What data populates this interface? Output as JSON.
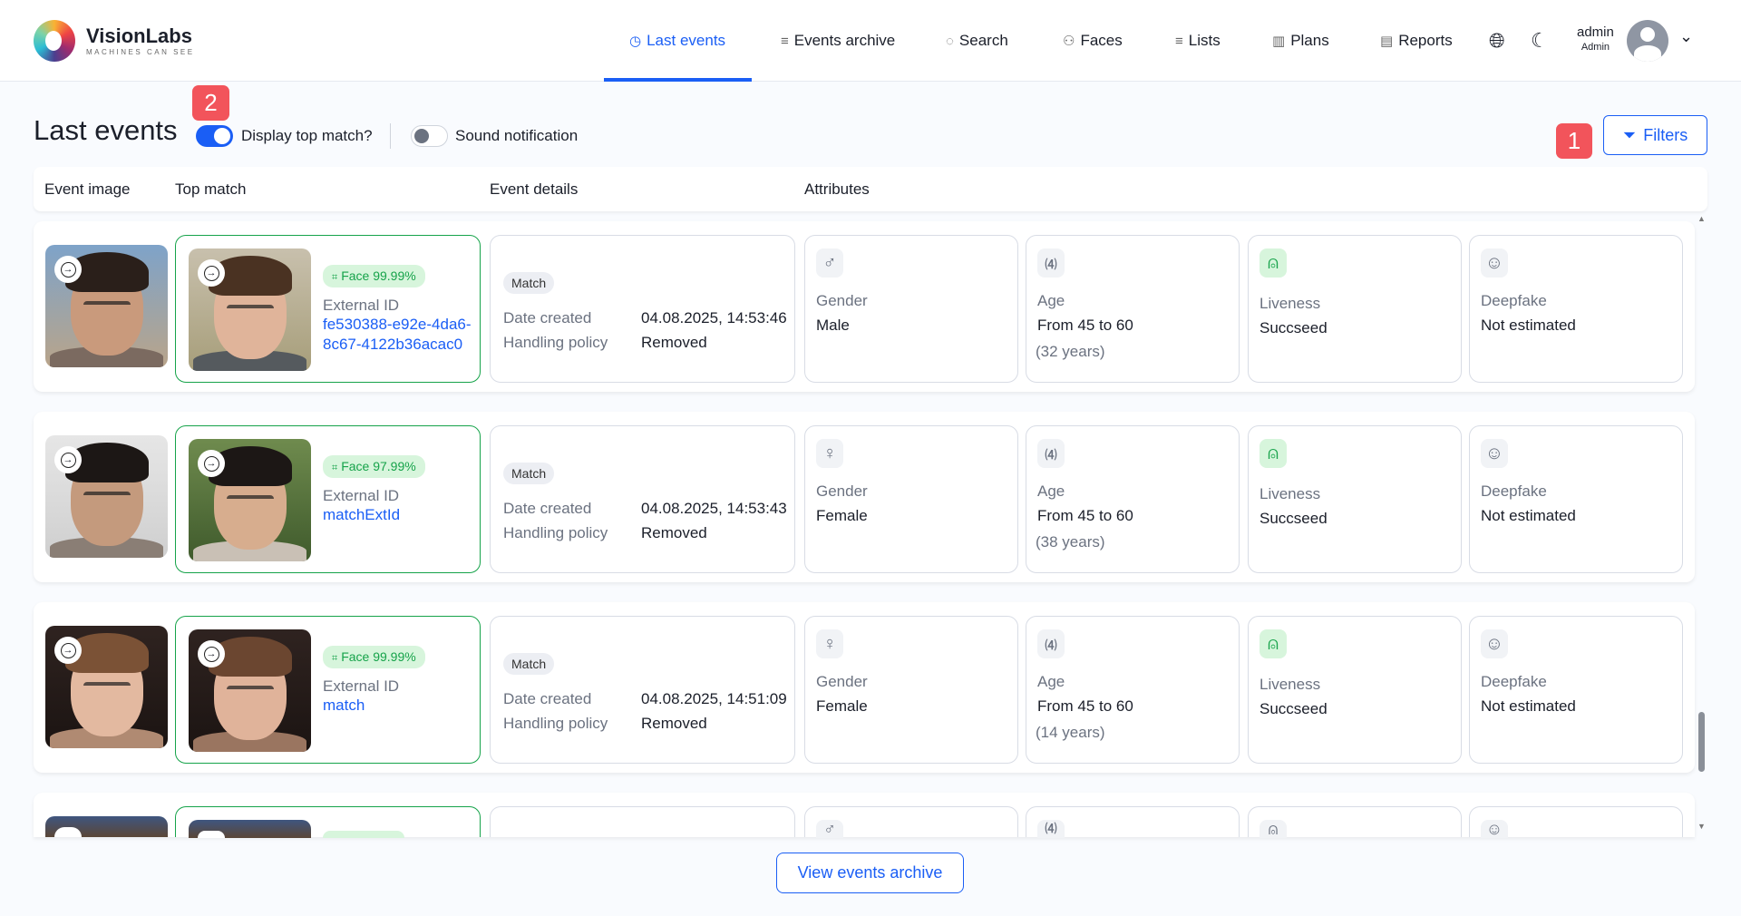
{
  "brand": {
    "name": "VisionLabs",
    "tagline": "MACHINES CAN SEE"
  },
  "nav": [
    {
      "label": "Last events",
      "icon": "clock-icon",
      "active": true
    },
    {
      "label": "Events archive",
      "icon": "list-icon"
    },
    {
      "label": "Search",
      "icon": "crosshair-icon"
    },
    {
      "label": "Faces",
      "icon": "users-icon"
    },
    {
      "label": "Lists",
      "icon": "list-icon"
    },
    {
      "label": "Plans",
      "icon": "map-icon"
    },
    {
      "label": "Reports",
      "icon": "document-icon"
    }
  ],
  "user": {
    "name": "admin",
    "role": "Admin"
  },
  "page": {
    "title": "Last events",
    "display_top_match": "Display top match?",
    "display_top_match_on": true,
    "sound_notification": "Sound notification",
    "sound_notification_on": false,
    "filters": "Filters",
    "view_archive": "View events archive"
  },
  "markers": [
    "1",
    "2"
  ],
  "table": {
    "headers": [
      "Event image",
      "Top match",
      "Event details",
      "Attributes"
    ]
  },
  "labels": {
    "external_id": "External ID",
    "date_created": "Date created",
    "handling_policy": "Handling policy",
    "gender": "Gender",
    "age": "Age",
    "liveness": "Liveness",
    "deepfake": "Deepfake"
  },
  "colors": {
    "accent": "#1a5ef5",
    "match": "#16a34a",
    "marker": "#f2545b"
  },
  "rows": [
    {
      "face_score": "Face 99.99%",
      "external_id": "fe530388-e92e-4da6-8c67-4122b36acac0",
      "status": "Match",
      "date_created": "04.08.2025, 14:53:46",
      "handling_policy": "Removed",
      "gender": "Male",
      "gender_icon": "male-icon",
      "age_range": "From 45 to 60",
      "age_years": "(32 years)",
      "liveness": "Succseed",
      "deepfake": "Not estimated"
    },
    {
      "face_score": "Face 97.99%",
      "external_id": "matchExtId",
      "status": "Match",
      "date_created": "04.08.2025, 14:53:43",
      "handling_policy": "Removed",
      "gender": "Female",
      "gender_icon": "female-icon",
      "age_range": "From 45 to 60",
      "age_years": "(38 years)",
      "liveness": "Succseed",
      "deepfake": "Not estimated"
    },
    {
      "face_score": "Face 99.99%",
      "external_id": "match",
      "status": "Match",
      "date_created": "04.08.2025, 14:51:09",
      "handling_policy": "Removed",
      "gender": "Female",
      "gender_icon": "female-icon",
      "age_range": "From 45 to 60",
      "age_years": "(14 years)",
      "liveness": "Succseed",
      "deepfake": "Not estimated"
    }
  ]
}
